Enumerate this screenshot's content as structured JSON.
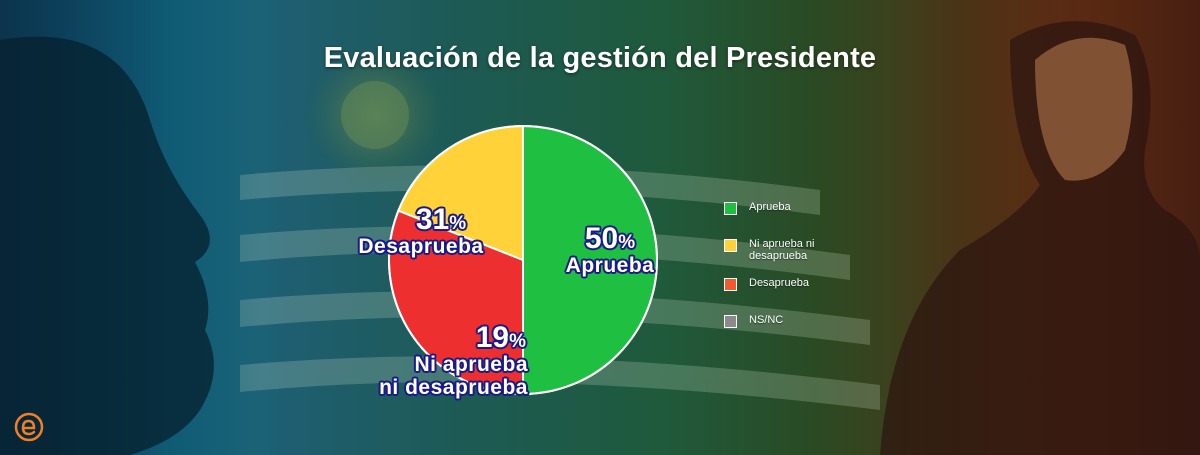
{
  "chart_data": {
    "type": "pie",
    "title": "Evaluación de la gestión del Presidente",
    "slices": [
      {
        "key": "aprueba",
        "label": "Aprueba",
        "value": 50,
        "color": "#1fbf42"
      },
      {
        "key": "desaprueba",
        "label": "Desaprueba",
        "value": 31,
        "color": "#ed2f2f"
      },
      {
        "key": "ni",
        "label": "Ni aprueba ni desaprueba",
        "value": 19,
        "color": "#ffd23a"
      }
    ],
    "slice_labels": {
      "aprueba": {
        "value": "50",
        "unit": "%",
        "lines": [
          "Aprueba"
        ]
      },
      "desaprueba": {
        "value": "31",
        "unit": "%",
        "lines": [
          "Desaprueba"
        ]
      },
      "ni": {
        "value": "19",
        "unit": "%",
        "lines": [
          "Ni aprueba",
          "ni desaprueba"
        ]
      }
    },
    "legend": [
      {
        "label": "Aprueba",
        "color": "#1fbf42"
      },
      {
        "label": "Ni aprueba ni desaprueba",
        "color": "#ffd23a"
      },
      {
        "label": "Desaprueba",
        "color": "#f05a2e"
      },
      {
        "label": "NS/NC",
        "color": "#8a8a8a"
      }
    ]
  },
  "brand": {
    "logo_icon": "e-logo-icon",
    "color": "#f07f2a"
  }
}
